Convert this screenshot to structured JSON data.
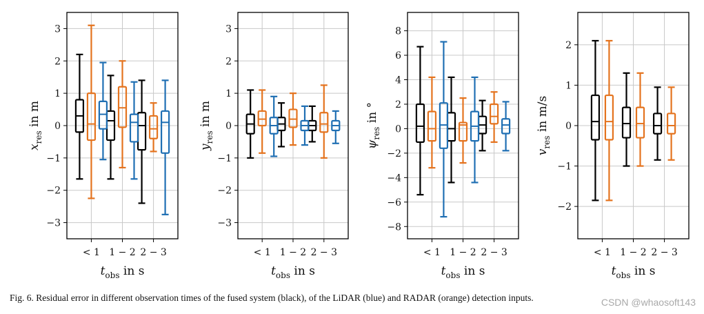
{
  "caption": "Fig. 6.  Residual error in different observation times of the fused system (black), of the LiDAR (blue) and RADAR (orange) detection inputs.",
  "watermark": "CSDN @whaosoft143",
  "colors": {
    "fused": "#000000",
    "radar": "#e4731e",
    "lidar": "#1f6fb3",
    "grid": "#c8c8c8"
  },
  "chart_data": [
    {
      "type": "box",
      "ylabel_main": "x",
      "ylabel_sub": "res",
      "ylabel_unit": "in m",
      "xlabel_main": "t",
      "xlabel_sub": "obs",
      "xlabel_unit": "in s",
      "ylim": [
        -3.5,
        3.5
      ],
      "yticks": [
        3,
        2,
        1,
        0,
        -1,
        -2,
        -3
      ],
      "ytick_labels": [
        "3",
        "2",
        "1",
        "0",
        "−1",
        "−2",
        "−3"
      ],
      "categories": [
        "< 1",
        "1 − 2",
        "2 − 3"
      ],
      "series": [
        {
          "name": "fused",
          "boxes": [
            [
              -1.65,
              -0.2,
              0.3,
              0.8,
              2.2
            ],
            [
              -1.65,
              -0.45,
              0.15,
              0.45,
              1.55
            ],
            [
              -2.4,
              -0.75,
              0.0,
              0.4,
              1.4
            ]
          ]
        },
        {
          "name": "radar",
          "boxes": [
            [
              -2.25,
              -0.45,
              0.05,
              1.0,
              3.1
            ],
            [
              -1.3,
              -0.05,
              0.55,
              1.2,
              2.0
            ],
            [
              -0.8,
              -0.4,
              -0.1,
              0.3,
              0.7
            ]
          ]
        },
        {
          "name": "lidar",
          "boxes": [
            [
              -1.05,
              -0.1,
              0.35,
              0.75,
              1.95
            ],
            [
              -1.65,
              -0.5,
              0.1,
              0.35,
              1.35
            ],
            [
              -2.75,
              -0.85,
              0.1,
              0.45,
              1.4
            ]
          ]
        }
      ]
    },
    {
      "type": "box",
      "ylabel_main": "y",
      "ylabel_sub": "res",
      "ylabel_unit": "in m",
      "xlabel_main": "t",
      "xlabel_sub": "obs",
      "xlabel_unit": "in s",
      "ylim": [
        -3.5,
        3.5
      ],
      "yticks": [
        3,
        2,
        1,
        0,
        -1,
        -2,
        -3
      ],
      "ytick_labels": [
        "3",
        "2",
        "1",
        "0",
        "−1",
        "−2",
        "−3"
      ],
      "categories": [
        "< 1",
        "1 − 2",
        "2 − 3"
      ],
      "series": [
        {
          "name": "fused",
          "boxes": [
            [
              -1.0,
              -0.25,
              0.05,
              0.35,
              1.1
            ],
            [
              -0.65,
              -0.15,
              0.05,
              0.25,
              0.7
            ],
            [
              -0.5,
              -0.15,
              0.0,
              0.15,
              0.6
            ]
          ]
        },
        {
          "name": "radar",
          "boxes": [
            [
              -0.85,
              0.0,
              0.2,
              0.45,
              1.1
            ],
            [
              -0.6,
              -0.05,
              0.2,
              0.5,
              1.0
            ],
            [
              -1.0,
              -0.2,
              0.05,
              0.4,
              1.25
            ]
          ]
        },
        {
          "name": "lidar",
          "boxes": [
            [
              -0.95,
              -0.25,
              0.0,
              0.25,
              0.9
            ],
            [
              -0.6,
              -0.15,
              0.0,
              0.15,
              0.6
            ],
            [
              -0.55,
              -0.15,
              0.0,
              0.15,
              0.45
            ]
          ]
        }
      ]
    },
    {
      "type": "box",
      "ylabel_main": "ψ",
      "ylabel_sub": "res",
      "ylabel_unit": "in °",
      "xlabel_main": "t",
      "xlabel_sub": "obs",
      "xlabel_unit": "in s",
      "ylim": [
        -9.0,
        9.5
      ],
      "yticks": [
        8,
        6,
        4,
        2,
        0,
        -2,
        -4,
        -6,
        -8
      ],
      "ytick_labels": [
        "8",
        "6",
        "4",
        "2",
        "0",
        "−2",
        "−4",
        "−6",
        "−8"
      ],
      "categories": [
        "< 1",
        "1 − 2",
        "2 − 3"
      ],
      "series": [
        {
          "name": "fused",
          "boxes": [
            [
              -5.4,
              -1.1,
              0.2,
              2.0,
              6.7
            ],
            [
              -4.4,
              -1.0,
              0.0,
              1.3,
              4.2
            ],
            [
              -1.8,
              -0.4,
              0.3,
              1.0,
              2.3
            ]
          ]
        },
        {
          "name": "radar",
          "boxes": [
            [
              -3.2,
              -1.0,
              0.0,
              1.4,
              4.2
            ],
            [
              -2.8,
              -1.0,
              0.3,
              0.5,
              2.5
            ],
            [
              -1.1,
              0.4,
              1.0,
              2.0,
              3.0
            ]
          ]
        },
        {
          "name": "lidar",
          "boxes": [
            [
              -7.2,
              -1.6,
              0.3,
              2.1,
              7.1
            ],
            [
              -4.4,
              -1.0,
              0.2,
              1.4,
              4.2
            ],
            [
              -1.8,
              -0.4,
              0.3,
              0.8,
              2.2
            ]
          ]
        }
      ]
    },
    {
      "type": "box",
      "ylabel_main": "v",
      "ylabel_sub": "res",
      "ylabel_unit": "in m/s",
      "xlabel_main": "t",
      "xlabel_sub": "obs",
      "xlabel_unit": "in s",
      "ylim": [
        -2.8,
        2.8
      ],
      "yticks": [
        2,
        1,
        0,
        -1,
        -2
      ],
      "ytick_labels": [
        "2",
        "1",
        "0",
        "−1",
        "−2"
      ],
      "categories": [
        "< 1",
        "1 − 2",
        "2 − 3"
      ],
      "series": [
        {
          "name": "fused",
          "boxes": [
            [
              -1.85,
              -0.35,
              0.1,
              0.75,
              2.1
            ],
            [
              -1.0,
              -0.3,
              0.05,
              0.45,
              1.3
            ],
            [
              -0.85,
              -0.2,
              0.0,
              0.3,
              0.95
            ]
          ]
        },
        {
          "name": "radar",
          "boxes": [
            [
              -1.85,
              -0.35,
              0.1,
              0.75,
              2.1
            ],
            [
              -1.0,
              -0.3,
              0.05,
              0.45,
              1.3
            ],
            [
              -0.85,
              -0.2,
              0.0,
              0.3,
              0.95
            ]
          ]
        }
      ]
    }
  ]
}
